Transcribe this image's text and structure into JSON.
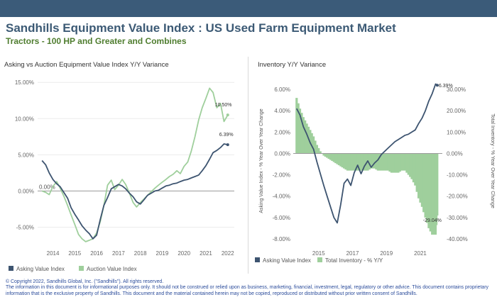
{
  "header": {
    "title": "Sandhills Equipment Value Index : US Used Farm Equipment Market",
    "subtitle": "Tractors - 100 HP and Greater and Combines"
  },
  "colors": {
    "topbar": "#3b5b79",
    "title": "#3c5a75",
    "subtitle": "#4f7d2f",
    "asking": "#3d5470",
    "auction": "#9fcf9c",
    "inventory": "#9fcf9c",
    "footer": "#2b4c9b"
  },
  "footer": {
    "copyright": "© Copyright 2022, Sandhills Global, Inc. (\"Sandhills\"). All rights reserved.",
    "disclaimer": "The information in this document is for informational purposes only.  It should not be construed or relied upon as business, marketing, financial, investment, legal, regulatory or other advice. This document contains proprietary information that is the exclusive property of Sandhills. This document and the material contained herein may not be copied, reproduced or distributed without prior written consent of Sandhills."
  },
  "chart_data": [
    {
      "type": "line",
      "title": "Asking vs Auction Equipment Value Index Y/Y Variance",
      "x_ticks": [
        "2014",
        "2015",
        "2016",
        "2017",
        "2018",
        "2019",
        "2020",
        "2021",
        "2022"
      ],
      "y_ticks": [
        "-5.00%",
        "0.00%",
        "5.00%",
        "10.00%",
        "15.00%"
      ],
      "ylim": [
        -7.5,
        16
      ],
      "xlim": [
        2013.3,
        2022.3
      ],
      "zero_label": "0.00%",
      "series": [
        {
          "name": "Asking Value Index",
          "color": "#3d5470",
          "end_label": "6.39%",
          "x": [
            2013.5,
            2013.67,
            2013.83,
            2014.0,
            2014.17,
            2014.33,
            2014.5,
            2014.67,
            2014.83,
            2015.0,
            2015.17,
            2015.33,
            2015.5,
            2015.67,
            2015.83,
            2016.0,
            2016.17,
            2016.33,
            2016.5,
            2016.67,
            2016.83,
            2017.0,
            2017.17,
            2017.33,
            2017.5,
            2017.67,
            2017.83,
            2018.0,
            2018.17,
            2018.33,
            2018.5,
            2018.67,
            2018.83,
            2019.0,
            2019.17,
            2019.33,
            2019.5,
            2019.67,
            2019.83,
            2020.0,
            2020.17,
            2020.33,
            2020.5,
            2020.67,
            2020.83,
            2021.0,
            2021.17,
            2021.33,
            2021.5,
            2021.67,
            2021.83,
            2022.0
          ],
          "y": [
            4.2,
            3.6,
            2.5,
            1.6,
            1.0,
            0.6,
            -0.2,
            -1.0,
            -2.3,
            -3.2,
            -4.0,
            -4.8,
            -5.4,
            -5.9,
            -6.6,
            -6.1,
            -3.9,
            -2.0,
            -0.9,
            0.3,
            0.6,
            0.9,
            0.7,
            0.3,
            -0.3,
            -0.8,
            -1.5,
            -1.8,
            -1.2,
            -0.6,
            -0.3,
            0.0,
            0.1,
            0.4,
            0.7,
            0.8,
            1.0,
            1.1,
            1.3,
            1.5,
            1.6,
            1.8,
            2.0,
            2.2,
            2.8,
            3.5,
            4.4,
            5.3,
            5.6,
            6.0,
            6.5,
            6.39
          ]
        },
        {
          "name": "Auction Value Index",
          "color": "#9fcf9c",
          "end_label": "10.50%",
          "x": [
            2013.5,
            2013.67,
            2013.83,
            2014.0,
            2014.17,
            2014.33,
            2014.5,
            2014.67,
            2014.83,
            2015.0,
            2015.17,
            2015.33,
            2015.5,
            2015.67,
            2015.83,
            2016.0,
            2016.17,
            2016.33,
            2016.5,
            2016.67,
            2016.83,
            2017.0,
            2017.17,
            2017.33,
            2017.5,
            2017.67,
            2017.83,
            2018.0,
            2018.17,
            2018.33,
            2018.5,
            2018.67,
            2018.83,
            2019.0,
            2019.17,
            2019.33,
            2019.5,
            2019.67,
            2019.83,
            2020.0,
            2020.17,
            2020.33,
            2020.5,
            2020.67,
            2020.83,
            2021.0,
            2021.17,
            2021.33,
            2021.5,
            2021.67,
            2021.83,
            2022.0
          ],
          "y": [
            0.0,
            -0.2,
            -0.5,
            0.6,
            1.3,
            0.4,
            -0.7,
            -2.0,
            -3.3,
            -4.6,
            -6.0,
            -6.6,
            -7.0,
            -6.8,
            -6.6,
            -5.8,
            -4.2,
            -2.0,
            0.8,
            1.5,
            0.2,
            0.8,
            1.6,
            0.9,
            -0.3,
            -1.6,
            -2.2,
            -1.6,
            -1.1,
            -0.6,
            -0.1,
            0.4,
            0.8,
            1.2,
            1.6,
            2.0,
            2.3,
            2.8,
            2.4,
            3.4,
            4.0,
            5.5,
            7.5,
            9.8,
            11.5,
            12.8,
            14.2,
            13.6,
            11.5,
            12.1,
            9.6,
            10.5
          ]
        }
      ]
    },
    {
      "type": "line+bar",
      "title": "Inventory Y/Y Variance",
      "ylabel_left": "Asking Value Index - % Year Over Year Change",
      "ylabel_right": "Total Inventory - % Year Over Year Change",
      "x_ticks": [
        "2015",
        "2017",
        "2019",
        "2021"
      ],
      "y_ticks_left": [
        "-8.00%",
        "-6.00%",
        "-4.00%",
        "-2.00%",
        "0.00%",
        "2.00%",
        "4.00%",
        "6.00%"
      ],
      "y_ticks_right": [
        "-40.00%",
        "-30.00%",
        "-20.00%",
        "-10.00%",
        "0.00%",
        "10.00%",
        "20.00%",
        "30.00%"
      ],
      "ylim_left": [
        -8.6,
        7.2
      ],
      "ylim_right": [
        -43,
        36
      ],
      "xlim": [
        2013.5,
        2022.3
      ],
      "series": [
        {
          "name": "Asking Value Index",
          "type": "line",
          "axis": "left",
          "color": "#3d5470",
          "end_label": "6.39%",
          "x": [
            2013.7,
            2013.9,
            2014.1,
            2014.3,
            2014.5,
            2014.7,
            2014.9,
            2015.1,
            2015.3,
            2015.5,
            2015.7,
            2015.9,
            2016.1,
            2016.3,
            2016.5,
            2016.7,
            2016.9,
            2017.1,
            2017.3,
            2017.5,
            2017.7,
            2017.9,
            2018.1,
            2018.3,
            2018.5,
            2018.7,
            2018.9,
            2019.1,
            2019.3,
            2019.5,
            2019.7,
            2019.9,
            2020.1,
            2020.3,
            2020.5,
            2020.7,
            2020.9,
            2021.1,
            2021.3,
            2021.5,
            2021.7,
            2021.9,
            2022.0
          ],
          "y": [
            4.2,
            3.6,
            2.5,
            1.8,
            1.0,
            0.4,
            -0.8,
            -1.9,
            -3.0,
            -4.0,
            -5.0,
            -6.0,
            -6.5,
            -4.8,
            -2.8,
            -2.4,
            -3.0,
            -1.8,
            -1.1,
            -1.9,
            -1.2,
            -0.7,
            -1.3,
            -0.9,
            -0.6,
            -0.1,
            0.2,
            0.5,
            0.8,
            1.1,
            1.3,
            1.5,
            1.7,
            1.8,
            2.0,
            2.2,
            2.8,
            3.3,
            4.0,
            4.9,
            5.6,
            6.5,
            6.39
          ]
        },
        {
          "name": "Total Inventory - % Y/Y",
          "type": "bar",
          "axis": "right",
          "color": "#9fcf9c",
          "end_label": "-29.04%",
          "x": [
            2013.7,
            2013.9,
            2014.1,
            2014.3,
            2014.5,
            2014.7,
            2014.9,
            2015.1,
            2015.3,
            2015.5,
            2015.7,
            2015.9,
            2016.1,
            2016.3,
            2016.5,
            2016.7,
            2016.9,
            2017.1,
            2017.3,
            2017.5,
            2017.7,
            2017.9,
            2018.1,
            2018.3,
            2018.5,
            2018.7,
            2018.9,
            2019.1,
            2019.3,
            2019.5,
            2019.7,
            2019.9,
            2020.1,
            2020.3,
            2020.5,
            2020.7,
            2020.9,
            2021.1,
            2021.3,
            2021.5,
            2021.7,
            2021.9,
            2022.0
          ],
          "y": [
            26,
            21,
            17,
            14,
            11,
            8,
            4,
            1,
            -1,
            -2,
            -3,
            -4,
            -5,
            -6,
            -7,
            -8,
            -8,
            -8,
            -8,
            -8,
            -8,
            -8,
            -7,
            -7,
            -8,
            -8,
            -8,
            -8,
            -9,
            -9,
            -9,
            -8,
            -8,
            -10,
            -12,
            -15,
            -21,
            -25,
            -30,
            -35,
            -38,
            -38,
            -29.04
          ]
        }
      ]
    }
  ]
}
